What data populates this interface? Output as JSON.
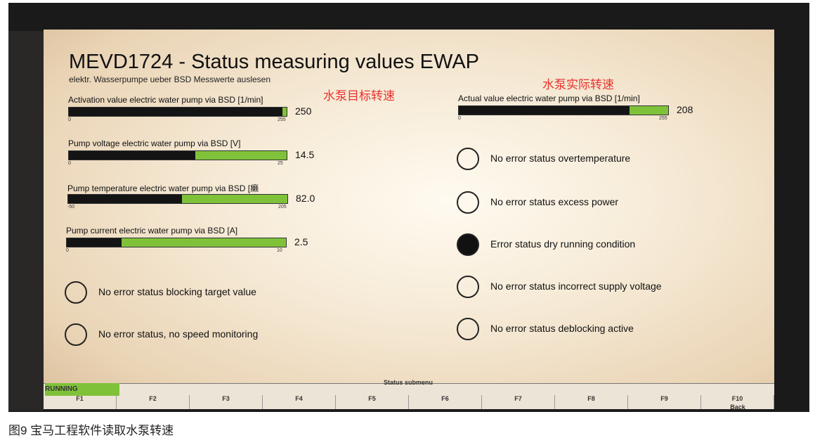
{
  "header": {
    "title": "MEVD1724 - Status measuring values EWAP",
    "subtitle": "elektr. Wasserpumpe ueber BSD Messwerte auslesen"
  },
  "annotations": {
    "target_speed": "水泵目标转速",
    "actual_speed": "水泵实际转速"
  },
  "gauges": [
    {
      "label": "Activation value electric water pump via BSD [1/min]",
      "value": 250,
      "min": 0,
      "max": 255
    },
    {
      "label": "Pump voltage electric water pump via BSD [V]",
      "value": 14.5,
      "min": 0,
      "max": 25
    },
    {
      "label": "Pump temperature electric water pump via BSD [癞",
      "value": 82,
      "value_label": "82.0",
      "min": -50,
      "max": 205
    },
    {
      "label": "Pump current electric water pump via BSD [A]",
      "value": 2.5,
      "min": 0,
      "max": 10
    },
    {
      "label": "Actual value electric water pump via BSD [1/min]",
      "value": 208,
      "min": 0,
      "max": 255
    }
  ],
  "statuses": [
    {
      "label": "No error status blocking target value",
      "active": false
    },
    {
      "label": "No error status, no speed monitoring",
      "active": false
    },
    {
      "label": "No error status overtemperature",
      "active": false
    },
    {
      "label": "No error status excess power",
      "active": false
    },
    {
      "label": "Error status dry running condition",
      "active": true
    },
    {
      "label": "No error status incorrect supply voltage",
      "active": false
    },
    {
      "label": "No error status deblocking active",
      "active": false
    }
  ],
  "footer": {
    "state": "RUNNING",
    "menu": "Status submenu",
    "keys": [
      "F1",
      "F2",
      "F3",
      "F4",
      "F5",
      "F6",
      "F7",
      "F8",
      "F9",
      "F10"
    ],
    "back": "Back"
  },
  "caption": "图9   宝马工程软件读取水泵转速"
}
